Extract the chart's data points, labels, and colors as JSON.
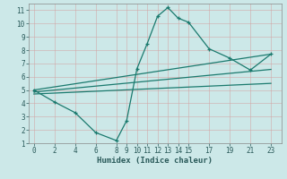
{
  "title": "",
  "xlabel": "Humidex (Indice chaleur)",
  "background_color": "#cce8e8",
  "grid_color": "#b8d4d4",
  "line_color": "#1a7a6e",
  "xlim": [
    -0.5,
    24
  ],
  "ylim": [
    1,
    11.5
  ],
  "xticks": [
    0,
    2,
    4,
    6,
    8,
    9,
    10,
    11,
    12,
    13,
    14,
    15,
    17,
    19,
    21,
    23
  ],
  "yticks": [
    1,
    2,
    3,
    4,
    5,
    6,
    7,
    8,
    9,
    10,
    11
  ],
  "line1_x": [
    0,
    2,
    4,
    6,
    8,
    9,
    10,
    11,
    12,
    13,
    14,
    15,
    17,
    19,
    21,
    23
  ],
  "line1_y": [
    5.0,
    4.1,
    3.3,
    1.8,
    1.2,
    2.7,
    6.6,
    8.5,
    10.55,
    11.2,
    10.4,
    10.1,
    8.1,
    7.4,
    6.5,
    7.7
  ],
  "line2_x": [
    0,
    23
  ],
  "line2_y": [
    5.0,
    7.7
  ],
  "line3_x": [
    0,
    23
  ],
  "line3_y": [
    4.85,
    6.55
  ],
  "line4_x": [
    0,
    23
  ],
  "line4_y": [
    4.7,
    5.5
  ]
}
